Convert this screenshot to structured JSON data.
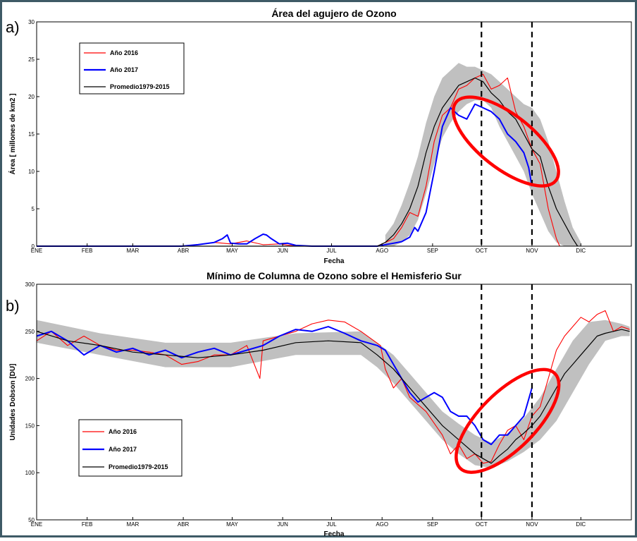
{
  "charts": {
    "a": {
      "panel_label": "a)",
      "title": "Área del agujero de Ozono",
      "xlabel": "Fecha",
      "ylabel": "Área [ millones de km2 ]",
      "legend": [
        "Año 2016",
        "Año 2017",
        "Promedio1979-2015"
      ]
    },
    "b": {
      "panel_label": "b)",
      "title": "Mínimo de Columna de Ozono sobre el Hemisferio Sur",
      "xlabel": "Fecha",
      "ylabel": "Unidades Dobson [DU]",
      "legend": [
        "Año 2016",
        "Año 2017",
        "Promedio1979-2015"
      ]
    }
  },
  "colors": {
    "s2016": "#ff0000",
    "s2017": "#0000ff",
    "mean": "#000000",
    "range": "#c0c0c0",
    "ellipse": "#ff0000"
  },
  "chart_data": [
    {
      "type": "line",
      "title": "Área del agujero de Ozono",
      "xlabel": "Fecha",
      "ylabel": "Área [ millones de km2 ]",
      "x_ticks": [
        "ENE",
        "FEB",
        "MAR",
        "ABR",
        "MAY",
        "JUN",
        "JUL",
        "AGO",
        "SEP",
        "OCT",
        "NOV",
        "DIC"
      ],
      "x_tick_days": [
        1,
        32,
        60,
        91,
        121,
        152,
        182,
        213,
        244,
        274,
        305,
        335
      ],
      "xlim": [
        1,
        366
      ],
      "ylim": [
        0,
        30
      ],
      "y_ticks": [
        0,
        5,
        10,
        15,
        20,
        25,
        30
      ],
      "vlines_day": [
        274,
        305
      ],
      "legend_position": "top-left",
      "grid": false,
      "ellipse": {
        "center": [
          289,
          14
        ],
        "rx": 16,
        "ry": 7.5
      },
      "series": [
        {
          "name": "Año 2016",
          "x": [
            1,
            90,
            100,
            110,
            120,
            130,
            140,
            150,
            160,
            170,
            180,
            190,
            200,
            210,
            215,
            220,
            225,
            230,
            235,
            240,
            245,
            250,
            255,
            260,
            265,
            270,
            275,
            280,
            285,
            290,
            295,
            300,
            305,
            310,
            315,
            320,
            322
          ],
          "y": [
            0,
            0,
            0.2,
            0.5,
            0.3,
            0.7,
            0.2,
            0.3,
            0,
            0,
            0,
            0,
            0,
            0,
            0.5,
            1.0,
            2.5,
            4.5,
            4.0,
            8.0,
            14.0,
            17.5,
            18.5,
            21.0,
            21.5,
            22.5,
            23.0,
            21.0,
            21.5,
            22.5,
            18.0,
            16.0,
            13.0,
            11.0,
            5.0,
            1.0,
            0
          ]
        },
        {
          "name": "Año 2017",
          "x": [
            1,
            90,
            100,
            110,
            115,
            118,
            120,
            125,
            130,
            135,
            140,
            142,
            145,
            150,
            155,
            160,
            170,
            180,
            190,
            200,
            210,
            215,
            220,
            225,
            230,
            233,
            235,
            240,
            245,
            250,
            255,
            260,
            265,
            270,
            275,
            280,
            285,
            290,
            295,
            300,
            303,
            305
          ],
          "y": [
            0,
            0,
            0.2,
            0.5,
            1.0,
            1.5,
            0.4,
            0.3,
            0.3,
            1.0,
            1.6,
            1.5,
            1.0,
            0.3,
            0.4,
            0.1,
            0,
            0,
            0,
            0,
            0,
            0.2,
            0.4,
            0.6,
            1.2,
            2.5,
            2.0,
            4.5,
            10.0,
            16.0,
            18.5,
            17.5,
            17.0,
            19.0,
            18.5,
            18.0,
            17.0,
            15.0,
            14.0,
            12.5,
            10.5,
            8.0
          ]
        },
        {
          "name": "Promedio1979-2015",
          "x": [
            1,
            100,
            150,
            200,
            210,
            215,
            220,
            225,
            230,
            235,
            240,
            245,
            250,
            255,
            260,
            265,
            270,
            275,
            280,
            285,
            290,
            295,
            300,
            305,
            310,
            315,
            320,
            325,
            330,
            333
          ],
          "y": [
            0,
            0,
            0,
            0,
            0,
            0.5,
            1.5,
            3.0,
            5.0,
            8.0,
            12.5,
            16.0,
            18.5,
            20.0,
            21.5,
            22.0,
            22.5,
            22.0,
            20.5,
            19.5,
            18.0,
            17.0,
            15.0,
            13.0,
            12.0,
            8.0,
            5.0,
            3.0,
            1.0,
            0
          ]
        },
        {
          "name": "Rango 1979-2015",
          "x": [
            215,
            220,
            225,
            230,
            235,
            240,
            245,
            250,
            255,
            260,
            265,
            270,
            275,
            280,
            285,
            290,
            295,
            300,
            305,
            310,
            315,
            320,
            325,
            330,
            335
          ],
          "lower": [
            0,
            0,
            0.5,
            1.5,
            3.5,
            7.0,
            11.0,
            14.5,
            16.5,
            18.0,
            19.0,
            19.5,
            19.5,
            18.5,
            16.0,
            14.0,
            12.0,
            10.0,
            7.0,
            4.5,
            2.0,
            0.5,
            0,
            0,
            0
          ],
          "upper": [
            1.5,
            3.0,
            5.5,
            8.5,
            12.0,
            16.5,
            20.0,
            22.5,
            23.5,
            24.5,
            24.0,
            24.0,
            23.5,
            23.0,
            22.0,
            21.0,
            20.0,
            19.0,
            18.5,
            17.0,
            14.0,
            10.0,
            6.0,
            2.5,
            0.5
          ]
        }
      ]
    },
    {
      "type": "line",
      "title": "Mínimo de Columna de Ozono sobre el Hemisferio Sur",
      "xlabel": "Fecha",
      "ylabel": "Unidades Dobson [DU]",
      "x_ticks": [
        "ENE",
        "FEB",
        "MAR",
        "ABR",
        "MAY",
        "JUN",
        "JUL",
        "AGO",
        "SEP",
        "OCT",
        "NOV",
        "DIC"
      ],
      "x_tick_days": [
        1,
        32,
        60,
        91,
        121,
        152,
        182,
        213,
        244,
        274,
        305,
        335
      ],
      "xlim": [
        1,
        366
      ],
      "ylim": [
        50,
        300
      ],
      "y_ticks": [
        50,
        100,
        150,
        200,
        250,
        300
      ],
      "vlines_day": [
        274,
        305
      ],
      "legend_position": "bottom-left",
      "grid": false,
      "ellipse": {
        "center": [
          290,
          155
        ],
        "rx": 18,
        "ry": 50
      },
      "series": [
        {
          "name": "Año 2016",
          "x": [
            1,
            10,
            20,
            30,
            40,
            50,
            60,
            70,
            80,
            90,
            100,
            110,
            120,
            130,
            138,
            140,
            150,
            160,
            170,
            180,
            190,
            200,
            208,
            212,
            215,
            220,
            225,
            230,
            240,
            250,
            255,
            260,
            265,
            270,
            275,
            280,
            285,
            290,
            295,
            300,
            305,
            310,
            315,
            320,
            325,
            330,
            335,
            340,
            345,
            350,
            355,
            360,
            365
          ],
          "y": [
            240,
            250,
            235,
            245,
            235,
            230,
            230,
            228,
            225,
            215,
            218,
            225,
            225,
            235,
            200,
            240,
            245,
            250,
            258,
            262,
            260,
            250,
            240,
            235,
            210,
            190,
            200,
            180,
            165,
            140,
            120,
            130,
            115,
            120,
            110,
            112,
            130,
            145,
            150,
            135,
            160,
            170,
            200,
            230,
            245,
            255,
            265,
            260,
            268,
            272,
            250,
            255,
            252
          ]
        },
        {
          "name": "Año 2017",
          "x": [
            1,
            10,
            20,
            30,
            40,
            50,
            60,
            70,
            80,
            90,
            100,
            110,
            120,
            130,
            140,
            150,
            160,
            170,
            180,
            190,
            200,
            210,
            215,
            220,
            225,
            230,
            235,
            240,
            245,
            250,
            255,
            260,
            265,
            270,
            275,
            280,
            285,
            290,
            295,
            300,
            305
          ],
          "y": [
            245,
            250,
            240,
            225,
            235,
            228,
            232,
            225,
            230,
            222,
            228,
            232,
            225,
            230,
            235,
            245,
            252,
            250,
            255,
            248,
            240,
            235,
            230,
            215,
            200,
            185,
            175,
            180,
            185,
            180,
            165,
            160,
            160,
            150,
            135,
            130,
            140,
            140,
            150,
            160,
            190
          ]
        },
        {
          "name": "Promedio1979-2015",
          "x": [
            1,
            20,
            40,
            60,
            80,
            100,
            120,
            140,
            160,
            180,
            200,
            210,
            220,
            230,
            240,
            250,
            260,
            270,
            275,
            280,
            285,
            290,
            295,
            300,
            305,
            310,
            315,
            320,
            325,
            330,
            335,
            340,
            345,
            350,
            355,
            360,
            365
          ],
          "y": [
            250,
            240,
            235,
            228,
            225,
            222,
            225,
            230,
            238,
            240,
            238,
            225,
            210,
            190,
            170,
            150,
            135,
            120,
            115,
            110,
            118,
            125,
            135,
            142,
            150,
            160,
            175,
            190,
            205,
            215,
            225,
            235,
            245,
            248,
            250,
            252,
            250
          ]
        },
        {
          "name": "Rango 1979-2015",
          "x": [
            1,
            40,
            80,
            120,
            160,
            200,
            210,
            220,
            230,
            240,
            250,
            260,
            270,
            280,
            290,
            300,
            310,
            320,
            330,
            340,
            350,
            360,
            365
          ],
          "lower": [
            238,
            225,
            212,
            212,
            225,
            225,
            212,
            195,
            175,
            155,
            135,
            120,
            108,
            105,
            112,
            122,
            135,
            155,
            185,
            215,
            240,
            245,
            245
          ],
          "upper": [
            262,
            248,
            238,
            238,
            248,
            250,
            238,
            225,
            205,
            185,
            165,
            152,
            140,
            132,
            142,
            158,
            180,
            210,
            240,
            260,
            262,
            258,
            255
          ]
        }
      ]
    }
  ]
}
